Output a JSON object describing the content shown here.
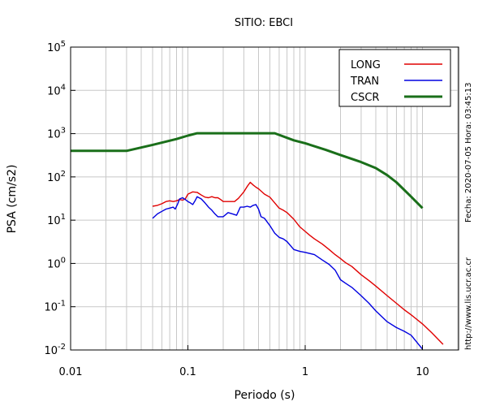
{
  "chart_data": {
    "type": "line",
    "title": "SITIO: EBCI",
    "xlabel": "Periodo (s)",
    "ylabel": "PSA (cm/s2)",
    "x_scale": "log",
    "y_scale": "log",
    "xlim": [
      0.01,
      20
    ],
    "ylim": [
      0.01,
      100000
    ],
    "grid": true,
    "legend_position": "top-right",
    "x_ticks": [
      {
        "value": 0.01,
        "label": "0.01"
      },
      {
        "value": 0.1,
        "label": "0.1"
      },
      {
        "value": 1,
        "label": "1"
      },
      {
        "value": 10,
        "label": "10"
      }
    ],
    "y_ticks": [
      {
        "value": 0.01,
        "base": "10",
        "exp": "-2"
      },
      {
        "value": 0.1,
        "base": "10",
        "exp": "-1"
      },
      {
        "value": 1,
        "base": "10",
        "exp": "0"
      },
      {
        "value": 10,
        "base": "10",
        "exp": "1"
      },
      {
        "value": 100,
        "base": "10",
        "exp": "2"
      },
      {
        "value": 1000,
        "base": "10",
        "exp": "3"
      },
      {
        "value": 10000,
        "base": "10",
        "exp": "4"
      },
      {
        "value": 100000,
        "base": "10",
        "exp": "5"
      }
    ],
    "series": [
      {
        "name": "LONG",
        "color": "#e00000",
        "points": [
          [
            0.05,
            21
          ],
          [
            0.055,
            22
          ],
          [
            0.06,
            24
          ],
          [
            0.065,
            27
          ],
          [
            0.07,
            28
          ],
          [
            0.075,
            27
          ],
          [
            0.08,
            28
          ],
          [
            0.085,
            30
          ],
          [
            0.09,
            29
          ],
          [
            0.095,
            31
          ],
          [
            0.1,
            40
          ],
          [
            0.11,
            45
          ],
          [
            0.12,
            44
          ],
          [
            0.13,
            38
          ],
          [
            0.14,
            34
          ],
          [
            0.15,
            33
          ],
          [
            0.16,
            35
          ],
          [
            0.17,
            33
          ],
          [
            0.18,
            33
          ],
          [
            0.19,
            30
          ],
          [
            0.2,
            27
          ],
          [
            0.22,
            27
          ],
          [
            0.25,
            27
          ],
          [
            0.27,
            32
          ],
          [
            0.3,
            45
          ],
          [
            0.32,
            60
          ],
          [
            0.34,
            75
          ],
          [
            0.36,
            65
          ],
          [
            0.38,
            58
          ],
          [
            0.4,
            53
          ],
          [
            0.45,
            40
          ],
          [
            0.5,
            34
          ],
          [
            0.55,
            25
          ],
          [
            0.6,
            19
          ],
          [
            0.65,
            17
          ],
          [
            0.7,
            15
          ],
          [
            0.8,
            10.5
          ],
          [
            0.9,
            7
          ],
          [
            1.0,
            5.5
          ],
          [
            1.1,
            4.4
          ],
          [
            1.2,
            3.7
          ],
          [
            1.4,
            2.8
          ],
          [
            1.6,
            2.1
          ],
          [
            1.8,
            1.6
          ],
          [
            2.0,
            1.3
          ],
          [
            2.2,
            1.05
          ],
          [
            2.5,
            0.85
          ],
          [
            3.0,
            0.55
          ],
          [
            3.5,
            0.4
          ],
          [
            4.0,
            0.3
          ],
          [
            5.0,
            0.18
          ],
          [
            6.0,
            0.12
          ],
          [
            7.0,
            0.085
          ],
          [
            8.0,
            0.065
          ],
          [
            10,
            0.04
          ],
          [
            12,
            0.025
          ],
          [
            15,
            0.0135
          ]
        ]
      },
      {
        "name": "TRAN",
        "color": "#0000e0",
        "points": [
          [
            0.05,
            11
          ],
          [
            0.055,
            14
          ],
          [
            0.06,
            16
          ],
          [
            0.065,
            18
          ],
          [
            0.07,
            19
          ],
          [
            0.075,
            20
          ],
          [
            0.078,
            18
          ],
          [
            0.082,
            24
          ],
          [
            0.085,
            31
          ],
          [
            0.09,
            33
          ],
          [
            0.095,
            30
          ],
          [
            0.1,
            27
          ],
          [
            0.105,
            25
          ],
          [
            0.11,
            23
          ],
          [
            0.115,
            28
          ],
          [
            0.12,
            35
          ],
          [
            0.13,
            31
          ],
          [
            0.14,
            25
          ],
          [
            0.15,
            20
          ],
          [
            0.16,
            17
          ],
          [
            0.17,
            14
          ],
          [
            0.18,
            12
          ],
          [
            0.2,
            12
          ],
          [
            0.22,
            15
          ],
          [
            0.24,
            14
          ],
          [
            0.26,
            13
          ],
          [
            0.28,
            20
          ],
          [
            0.3,
            20
          ],
          [
            0.32,
            21
          ],
          [
            0.34,
            20
          ],
          [
            0.36,
            22
          ],
          [
            0.38,
            23
          ],
          [
            0.4,
            18
          ],
          [
            0.42,
            12
          ],
          [
            0.45,
            11
          ],
          [
            0.5,
            7.5
          ],
          [
            0.55,
            5
          ],
          [
            0.6,
            4
          ],
          [
            0.65,
            3.7
          ],
          [
            0.7,
            3.2
          ],
          [
            0.8,
            2.1
          ],
          [
            0.9,
            1.9
          ],
          [
            1.0,
            1.8
          ],
          [
            1.2,
            1.6
          ],
          [
            1.4,
            1.2
          ],
          [
            1.6,
            0.95
          ],
          [
            1.8,
            0.7
          ],
          [
            2.0,
            0.42
          ],
          [
            2.2,
            0.35
          ],
          [
            2.5,
            0.28
          ],
          [
            3.0,
            0.18
          ],
          [
            3.5,
            0.12
          ],
          [
            4.0,
            0.08
          ],
          [
            5.0,
            0.045
          ],
          [
            6.0,
            0.033
          ],
          [
            7.0,
            0.027
          ],
          [
            8.0,
            0.022
          ],
          [
            10,
            0.0105
          ]
        ]
      },
      {
        "name": "CSCR",
        "color": "#1a6f1a",
        "points": [
          [
            0.01,
            400
          ],
          [
            0.03,
            400
          ],
          [
            0.05,
            550
          ],
          [
            0.08,
            750
          ],
          [
            0.1,
            900
          ],
          [
            0.12,
            1020
          ],
          [
            0.55,
            1020
          ],
          [
            0.8,
            700
          ],
          [
            1.0,
            600
          ],
          [
            1.5,
            420
          ],
          [
            2.0,
            320
          ],
          [
            3.0,
            220
          ],
          [
            4.0,
            160
          ],
          [
            5.0,
            110
          ],
          [
            6.0,
            75
          ],
          [
            8.0,
            35
          ],
          [
            10,
            19
          ]
        ]
      }
    ]
  },
  "side_info": {
    "timestamp": "Fecha: 2020-07-05  Hora: 03:45:13",
    "url": "http://www.lis.ucr.ac.cr"
  }
}
